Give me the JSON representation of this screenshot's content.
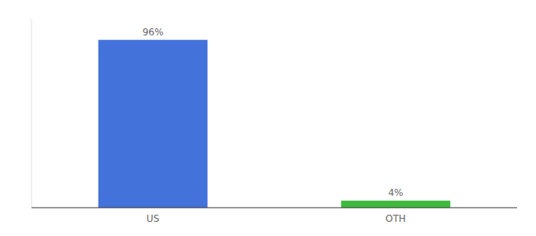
{
  "chart_data": {
    "type": "bar",
    "categories": [
      "US",
      "OTH"
    ],
    "values": [
      96,
      4
    ],
    "value_labels": [
      "96%",
      "4%"
    ],
    "colors": [
      "#4472db",
      "#3dba3d"
    ],
    "ylim": [
      0,
      108
    ],
    "data_labels": true,
    "tick_labels": "x",
    "grid": false
  }
}
